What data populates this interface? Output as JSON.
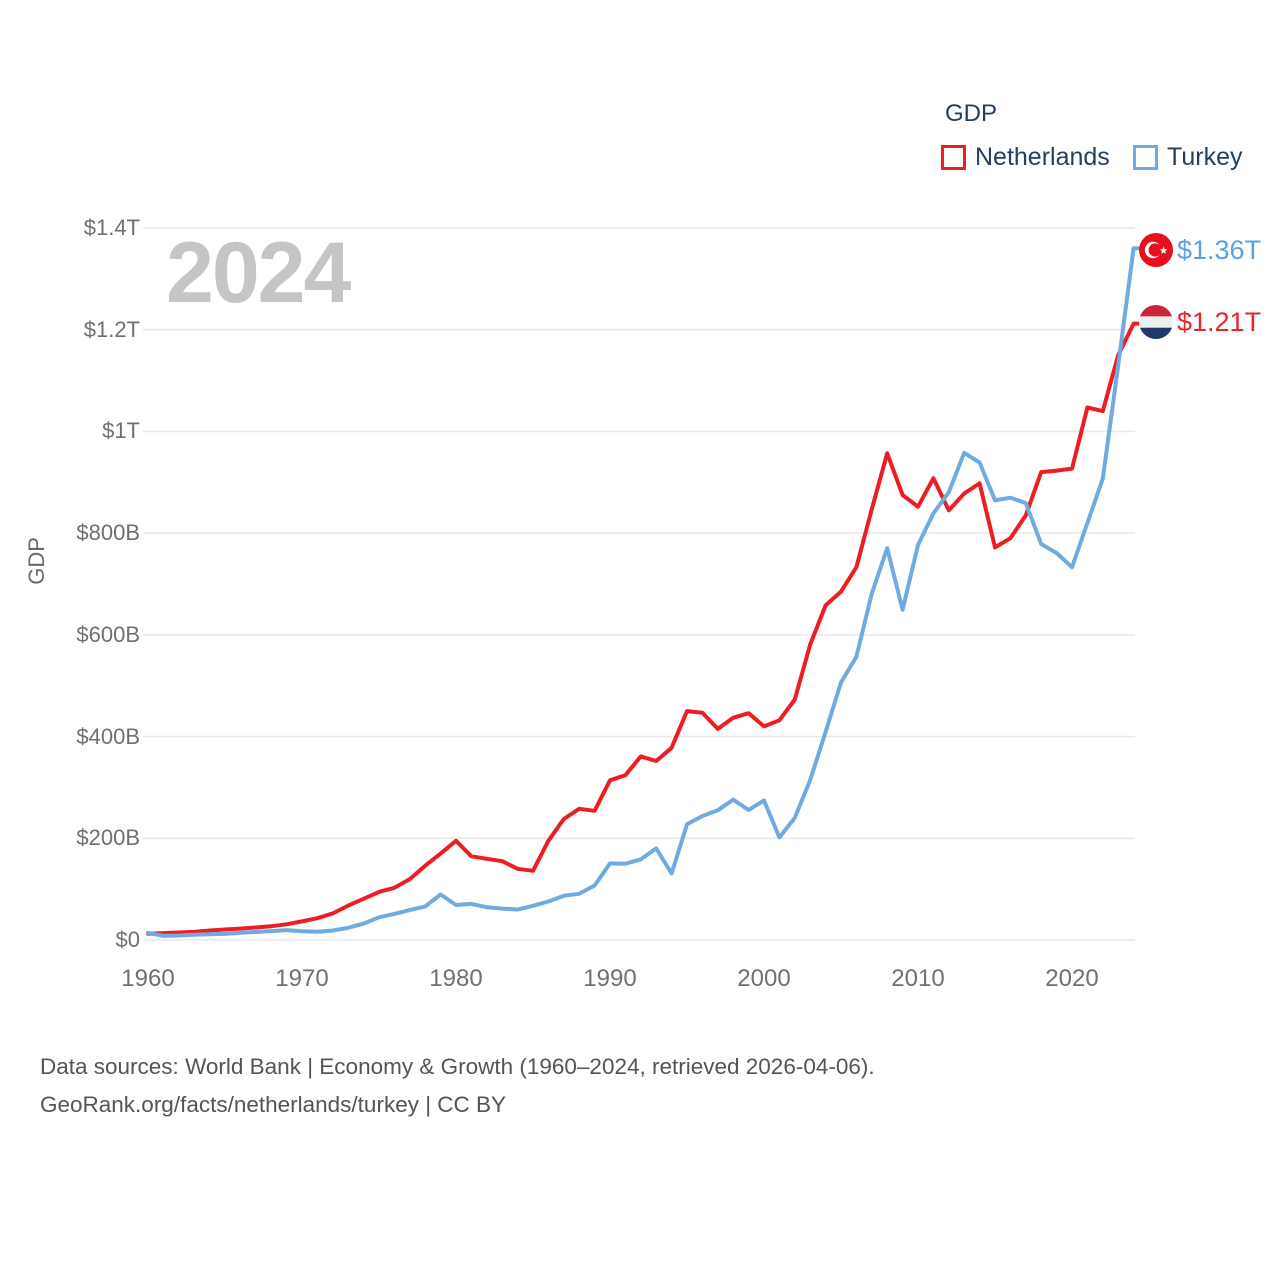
{
  "watermark": "2024",
  "legend": {
    "title": "GDP",
    "items": [
      {
        "label": "Netherlands",
        "color": "#ee1d23"
      },
      {
        "label": "Turkey",
        "color": "#70aae2"
      }
    ]
  },
  "end_labels": [
    {
      "series": "Turkey",
      "value_label": "$1.36T",
      "flag": "turkey-flag",
      "color": "#5c9fe5"
    },
    {
      "series": "Netherlands",
      "value_label": "$1.21T",
      "flag": "netherlands-flag",
      "color": "#e82330"
    }
  ],
  "footer": {
    "line1": "Data sources: World Bank | Economy & Growth (1960–2024, retrieved 2026-04-06).",
    "line2": "GeoRank.org/facts/netherlands/turkey | CC BY"
  },
  "chart_data": {
    "type": "line",
    "title": "GDP",
    "xlabel": "",
    "ylabel": "GDP",
    "ylim": [
      0,
      1400
    ],
    "xlim": [
      1960,
      2024
    ],
    "grid": true,
    "legend_position": "top-right",
    "y_ticks": [
      {
        "label": "$0",
        "value": 0
      },
      {
        "label": "$200B",
        "value": 200
      },
      {
        "label": "$400B",
        "value": 400
      },
      {
        "label": "$600B",
        "value": 600
      },
      {
        "label": "$800B",
        "value": 800
      },
      {
        "label": "$1T",
        "value": 1000
      },
      {
        "label": "$1.2T",
        "value": 1200
      },
      {
        "label": "$1.4T",
        "value": 1400
      }
    ],
    "x_ticks": [
      1960,
      1970,
      1980,
      1990,
      2000,
      2010,
      2020
    ],
    "unit": "billions of current US$",
    "years": [
      1960,
      1961,
      1962,
      1963,
      1964,
      1965,
      1966,
      1967,
      1968,
      1969,
      1970,
      1971,
      1972,
      1973,
      1974,
      1975,
      1976,
      1977,
      1978,
      1979,
      1980,
      1981,
      1982,
      1983,
      1984,
      1985,
      1986,
      1987,
      1988,
      1989,
      1990,
      1991,
      1992,
      1993,
      1994,
      1995,
      1996,
      1997,
      1998,
      1999,
      2000,
      2001,
      2002,
      2003,
      2004,
      2005,
      2006,
      2007,
      2008,
      2009,
      2010,
      2011,
      2012,
      2013,
      2014,
      2015,
      2016,
      2017,
      2018,
      2019,
      2020,
      2021,
      2022,
      2023,
      2024
    ],
    "series": [
      {
        "name": "Netherlands",
        "color": "#ee1d23",
        "values": [
          12.3,
          13.5,
          14.7,
          16.0,
          18.6,
          20.7,
          22.5,
          24.5,
          27.1,
          30.9,
          36.6,
          42.8,
          52.3,
          67.6,
          81.1,
          94.5,
          102.7,
          119.8,
          146.0,
          169.8,
          195.1,
          164.6,
          159.6,
          154.9,
          140.0,
          136.0,
          195.0,
          238.0,
          258.0,
          254.0,
          314.0,
          324.0,
          361.0,
          352.0,
          378.0,
          450.0,
          447.0,
          415.0,
          437.0,
          446.0,
          420.0,
          432.0,
          473.0,
          581.0,
          658.0,
          685.0,
          733.0,
          847.0,
          957.0,
          875.0,
          852.0,
          908.0,
          845.0,
          878.0,
          898.0,
          772.0,
          790.0,
          835.0,
          920.0,
          923.0,
          927.0,
          1047.0,
          1040.0,
          1150.0,
          1212.0
        ]
      },
      {
        "name": "Turkey",
        "color": "#70aae2",
        "values": [
          14.0,
          8.0,
          8.9,
          10.4,
          11.2,
          11.9,
          14.1,
          15.7,
          17.5,
          19.5,
          17.1,
          16.2,
          18.7,
          23.9,
          32.2,
          44.6,
          51.3,
          58.7,
          66.0,
          89.4,
          68.8,
          71.0,
          64.5,
          61.7,
          60.0,
          67.2,
          75.7,
          87.2,
          90.8,
          107.1,
          150.7,
          150.0,
          158.5,
          180.2,
          130.7,
          227.5,
          243.9,
          255.1,
          275.8,
          255.9,
          274.3,
          201.8,
          240.2,
          314.6,
          408.9,
          506.3,
          557.1,
          681.3,
          770.4,
          649.3,
          776.7,
          838.8,
          880.6,
          957.8,
          938.9,
          864.3,
          869.7,
          859.0,
          778.5,
          761.0,
          733.0,
          819.9,
          907.1,
          1130.0,
          1360.0
        ]
      }
    ]
  }
}
